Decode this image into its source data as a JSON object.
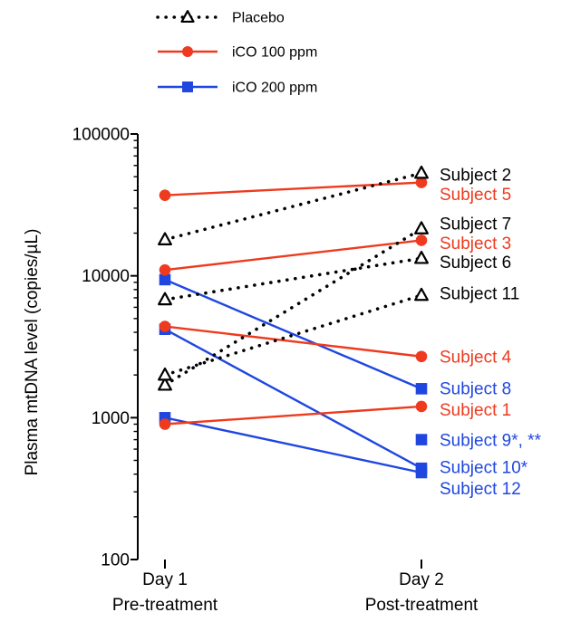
{
  "chart_data": {
    "type": "line",
    "title": "",
    "xlabel": "",
    "ylabel": "Plasma mtDNA level (copies/µL)",
    "yscale": "log",
    "ylim": [
      100,
      100000
    ],
    "yticks": [
      100,
      1000,
      10000,
      100000
    ],
    "ytick_labels": [
      "100",
      "1000",
      "10000",
      "100000"
    ],
    "categories": [
      {
        "line1": "Day 1",
        "line2": "Pre-treatment"
      },
      {
        "line1": "Day 2",
        "line2": "Post-treatment"
      }
    ],
    "legend": {
      "placement": "top-left",
      "entries": [
        {
          "label": "Placebo",
          "color": "#000000",
          "marker": "triangle-open",
          "dash": "dotted"
        },
        {
          "label": "iCO 100 ppm",
          "color": "#ee3a1e",
          "marker": "circle",
          "dash": "solid"
        },
        {
          "label": "iCO 200 ppm",
          "color": "#1f47e0",
          "marker": "square",
          "dash": "solid"
        }
      ]
    },
    "series": [
      {
        "name": "Subject 2",
        "group": "Placebo",
        "values": [
          18000,
          53000
        ]
      },
      {
        "name": "Subject 7",
        "group": "Placebo",
        "values": [
          1700,
          21500
        ]
      },
      {
        "name": "Subject 6",
        "group": "Placebo",
        "values": [
          6800,
          13300
        ]
      },
      {
        "name": "Subject 11",
        "group": "Placebo",
        "values": [
          2000,
          7300
        ]
      },
      {
        "name": "Subject 5",
        "group": "iCO 100 ppm",
        "values": [
          37000,
          45500
        ]
      },
      {
        "name": "Subject 3",
        "group": "iCO 100 ppm",
        "values": [
          11000,
          17800
        ]
      },
      {
        "name": "Subject 4",
        "group": "iCO 100 ppm",
        "values": [
          4400,
          2700
        ]
      },
      {
        "name": "Subject 1",
        "group": "iCO 100 ppm",
        "values": [
          900,
          1200
        ]
      },
      {
        "name": "Subject 8",
        "group": "iCO 200 ppm",
        "values": [
          9400,
          1600
        ]
      },
      {
        "name": "Subject 9*, **",
        "group": "iCO 200 ppm",
        "values": [
          null,
          700
        ]
      },
      {
        "name": "Subject 10*",
        "group": "iCO 200 ppm",
        "values": [
          4200,
          440
        ]
      },
      {
        "name": "Subject 12",
        "group": "iCO 200 ppm",
        "values": [
          1000,
          410
        ]
      }
    ],
    "subject_labels": [
      {
        "text": "Subject 2",
        "group": "Placebo",
        "value": 52000
      },
      {
        "text": "Subject 5",
        "group": "iCO 100 ppm",
        "value": 38000
      },
      {
        "text": "Subject 7",
        "group": "Placebo",
        "value": 23500
      },
      {
        "text": "Subject 3",
        "group": "iCO 100 ppm",
        "value": 17200
      },
      {
        "text": "Subject 6",
        "group": "Placebo",
        "value": 12600
      },
      {
        "text": "Subject 11",
        "group": "Placebo",
        "value": 7600
      },
      {
        "text": "Subject 4",
        "group": "iCO 100 ppm",
        "value": 2720
      },
      {
        "text": "Subject 8",
        "group": "iCO 200 ppm",
        "value": 1620
      },
      {
        "text": "Subject 1",
        "group": "iCO 100 ppm",
        "value": 1150
      },
      {
        "text": "Subject 9*, **",
        "group": "iCO 200 ppm",
        "value": 700
      },
      {
        "text": "Subject 10*",
        "group": "iCO 200 ppm",
        "value": 450
      },
      {
        "text": "Subject 12",
        "group": "iCO 200 ppm",
        "value": 320
      }
    ]
  }
}
